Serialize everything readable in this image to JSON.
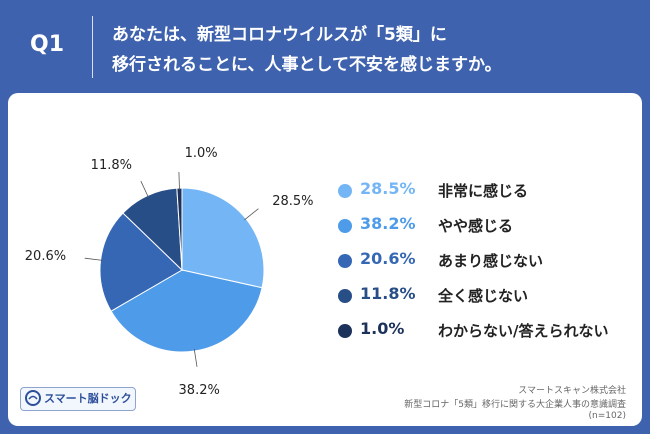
{
  "header": {
    "q_label": "Q1",
    "question_line_1": "あなたは、新型コロナウイルスが「5類」に",
    "question_line_2": "移行されることに、人事として不安を感じますか。"
  },
  "colors": {
    "header_bg": "#3e62ad",
    "card_bg": "#ffffff",
    "series": [
      "#74b6f5",
      "#4e9bea",
      "#3567b5",
      "#284e88",
      "#1c325a"
    ]
  },
  "chart_data": {
    "type": "pie",
    "start_angle_deg": 0,
    "direction": "clockwise",
    "slices": [
      {
        "label": "非常に感じる",
        "value": 28.5,
        "value_text": "28.5%"
      },
      {
        "label": "やや感じる",
        "value": 38.2,
        "value_text": "38.2%"
      },
      {
        "label": "あまり感じない",
        "value": 20.6,
        "value_text": "20.6%"
      },
      {
        "label": "全く感じない",
        "value": 11.8,
        "value_text": "11.8%"
      },
      {
        "label": "わからない/答えられない",
        "value": 1.0,
        "value_text": "1.0%"
      }
    ],
    "legend_placement": "right"
  },
  "footer": {
    "logo_text": "スマート脳ドック",
    "source_line_1": "スマートスキャン株式会社",
    "source_line_2": "新型コロナ「5類」移行に関する大企業人事の意識調査",
    "source_line_3": "(n=102)"
  }
}
